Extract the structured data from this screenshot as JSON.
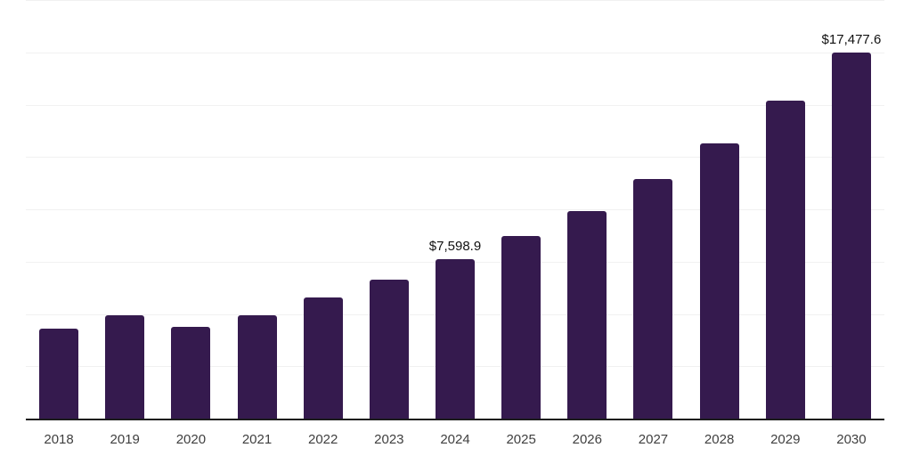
{
  "chart_data": {
    "type": "bar",
    "title": "",
    "xlabel": "",
    "ylabel": "",
    "categories": [
      "2018",
      "2019",
      "2020",
      "2021",
      "2022",
      "2023",
      "2024",
      "2025",
      "2026",
      "2027",
      "2028",
      "2029",
      "2030"
    ],
    "values": [
      4290,
      4940,
      4400,
      4950,
      5790,
      6650,
      7598.9,
      8710,
      9920,
      11440,
      13150,
      15180,
      17477.6
    ],
    "value_labels": [
      "",
      "",
      "",
      "",
      "",
      "",
      "$7,598.9",
      "",
      "",
      "",
      "",
      "",
      "$17,477.6"
    ],
    "ylim": [
      0,
      20000
    ],
    "gridline_step": 2500,
    "grid": true,
    "legend": false,
    "y_axis_labels_visible": false,
    "bar_color": "#351A4E",
    "gridline_color": "#F1F1F1",
    "axis_line_color": "#1C1C1C",
    "tick_label_color": "#3F3F3F",
    "data_label_color": "#111111",
    "background_color": "#FFFFFF"
  }
}
